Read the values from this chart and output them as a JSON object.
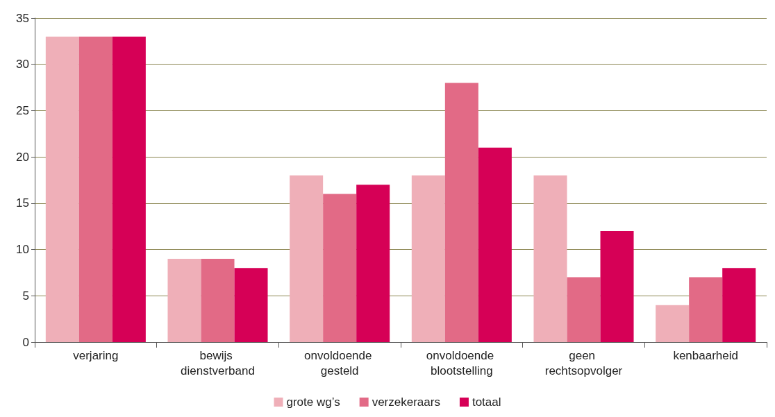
{
  "chart_data": {
    "type": "bar",
    "categories": [
      "verjaring",
      "bewijs dienstverband",
      "onvoldoende gesteld",
      "onvoldoende blootstelling",
      "geen rechtsopvolger",
      "kenbaarheid"
    ],
    "series": [
      {
        "name": "grote wg’s",
        "color": "#efafb8",
        "values": [
          33,
          9,
          18,
          18,
          18,
          4
        ]
      },
      {
        "name": "verzekeraars",
        "color": "#e26a86",
        "values": [
          33,
          9,
          16,
          28,
          7,
          7
        ]
      },
      {
        "name": "totaal",
        "color": "#d60056",
        "values": [
          33,
          8,
          17,
          21,
          12,
          8
        ]
      }
    ],
    "ylim": [
      0,
      35
    ],
    "yticks": [
      0,
      5,
      10,
      15,
      20,
      25,
      30,
      35
    ],
    "grid": "y",
    "legend": "bottom"
  }
}
